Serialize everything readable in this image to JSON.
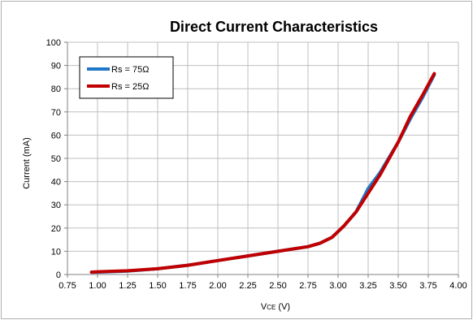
{
  "chart_data": {
    "type": "line",
    "title": "Direct Current Characteristics",
    "xlabel": "VCE (V)",
    "xlabel_main": "V",
    "xlabel_sub": "CE",
    "xlabel_unit": " (V)",
    "ylabel": "Current (mA)",
    "xlim": [
      0.75,
      4.0
    ],
    "ylim": [
      0,
      100
    ],
    "x_ticks": [
      0.75,
      1.0,
      1.25,
      1.5,
      1.75,
      2.0,
      2.25,
      2.5,
      2.75,
      3.0,
      3.25,
      3.5,
      3.75,
      4.0
    ],
    "x_tick_labels": [
      "0.75",
      "1.00",
      "1.25",
      "1.50",
      "1.75",
      "2.00",
      "2.25",
      "2.50",
      "2.75",
      "3.00",
      "3.25",
      "3.50",
      "3.75",
      "4.00"
    ],
    "y_ticks": [
      0,
      10,
      20,
      30,
      40,
      50,
      60,
      70,
      80,
      90,
      100
    ],
    "y_tick_labels": [
      "0",
      "10",
      "20",
      "30",
      "40",
      "50",
      "60",
      "70",
      "80",
      "90",
      "100"
    ],
    "grid": true,
    "legend_position": "top-left",
    "series": [
      {
        "name": "Rs = 75Ω",
        "color": "#1f77c8",
        "x": [
          0.95,
          1.0,
          1.25,
          1.5,
          1.75,
          2.0,
          2.25,
          2.5,
          2.75,
          2.85,
          2.95,
          3.05,
          3.15,
          3.25,
          3.35,
          3.5,
          3.6,
          3.7,
          3.8
        ],
        "y": [
          1,
          1,
          1.5,
          2.5,
          4,
          6,
          8,
          10,
          12,
          13.5,
          16,
          21,
          27,
          37,
          44,
          57,
          67,
          76,
          86
        ]
      },
      {
        "name": "Rs = 25Ω",
        "color": "#c00000",
        "x": [
          0.95,
          1.0,
          1.25,
          1.5,
          1.75,
          2.0,
          2.25,
          2.5,
          2.75,
          2.85,
          2.95,
          3.05,
          3.15,
          3.25,
          3.35,
          3.5,
          3.6,
          3.7,
          3.8
        ],
        "y": [
          1,
          1.2,
          1.6,
          2.5,
          4,
          6,
          8,
          10,
          12,
          13.5,
          16,
          21,
          27,
          35,
          43,
          57,
          68,
          77,
          86.5
        ]
      }
    ]
  }
}
